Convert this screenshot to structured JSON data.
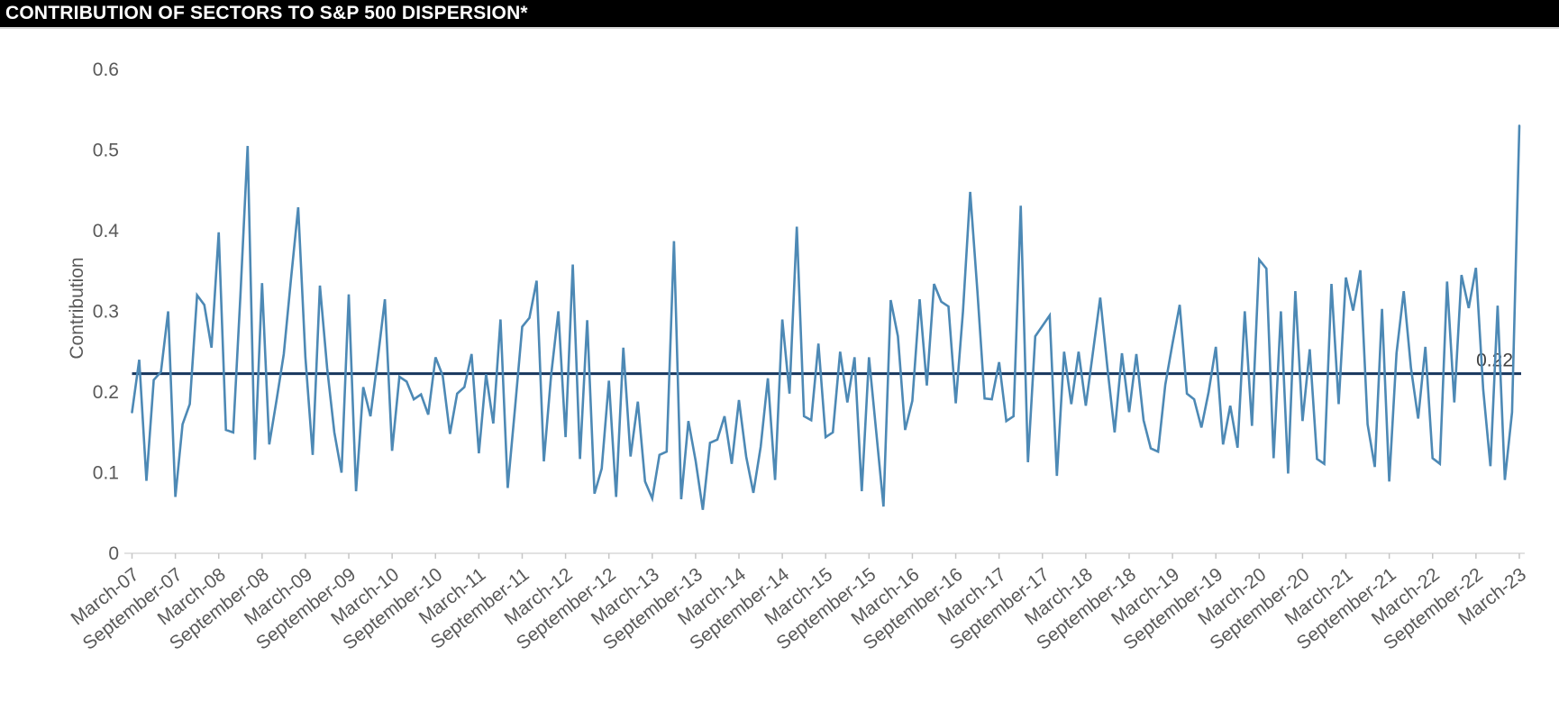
{
  "title": "CONTRIBUTION OF SECTORS TO S&P 500 DISPERSION*",
  "colors": {
    "title_bar_bg": "#000000",
    "title_text": "#ffffff",
    "series_line": "#4d89b5",
    "mean_line": "#17365d",
    "axis_line": "#d9d9d9",
    "tick_mark": "#c6c6c6",
    "axis_text": "#595959",
    "mean_label_text": "#404040"
  },
  "chart_data": {
    "type": "line",
    "title": "CONTRIBUTION OF SECTORS TO S&P 500 DISPERSION*",
    "xlabel": "",
    "ylabel": "Contribution",
    "ylim": [
      0,
      0.6
    ],
    "ytick_labels": [
      "0",
      "0.1",
      "0.2",
      "0.3",
      "0.4",
      "0.5",
      "0.6"
    ],
    "ytick_values": [
      0,
      0.1,
      0.2,
      0.3,
      0.4,
      0.5,
      0.6
    ],
    "grid": false,
    "legend_position": "none",
    "x_frequency": "monthly",
    "x_start": "March-07",
    "x_end": "March-23",
    "x_tick_labels": [
      "March-07",
      "September-07",
      "March-08",
      "September-08",
      "March-09",
      "September-09",
      "March-10",
      "September-10",
      "March-11",
      "September-11",
      "March-12",
      "September-12",
      "March-13",
      "September-13",
      "March-14",
      "September-14",
      "March-15",
      "September-15",
      "March-16",
      "September-16",
      "March-17",
      "September-17",
      "March-18",
      "September-18",
      "March-19",
      "September-19",
      "March-20",
      "September-20",
      "March-21",
      "September-21",
      "March-22",
      "September-22",
      "March-23"
    ],
    "mean_line": {
      "value": 0.22,
      "label": "0.22"
    },
    "series": [
      {
        "name": "Contribution of sectors to S&P 500 dispersion",
        "values": [
          0.175,
          0.24,
          0.09,
          0.215,
          0.225,
          0.3,
          0.07,
          0.16,
          0.185,
          0.32,
          0.308,
          0.255,
          0.398,
          0.153,
          0.15,
          0.32,
          0.505,
          0.116,
          0.335,
          0.135,
          0.19,
          0.247,
          0.34,
          0.429,
          0.243,
          0.122,
          0.332,
          0.23,
          0.15,
          0.1,
          0.321,
          0.077,
          0.206,
          0.17,
          0.24,
          0.315,
          0.127,
          0.219,
          0.213,
          0.191,
          0.197,
          0.172,
          0.243,
          0.22,
          0.148,
          0.198,
          0.206,
          0.247,
          0.124,
          0.222,
          0.161,
          0.29,
          0.081,
          0.18,
          0.281,
          0.292,
          0.338,
          0.114,
          0.22,
          0.3,
          0.144,
          0.358,
          0.117,
          0.289,
          0.074,
          0.105,
          0.214,
          0.07,
          0.255,
          0.12,
          0.188,
          0.089,
          0.068,
          0.122,
          0.126,
          0.387,
          0.067,
          0.164,
          0.115,
          0.054,
          0.137,
          0.141,
          0.17,
          0.111,
          0.19,
          0.12,
          0.075,
          0.132,
          0.217,
          0.091,
          0.29,
          0.198,
          0.405,
          0.17,
          0.165,
          0.26,
          0.144,
          0.15,
          0.25,
          0.187,
          0.243,
          0.077,
          0.243,
          0.15,
          0.058,
          0.314,
          0.269,
          0.153,
          0.189,
          0.315,
          0.208,
          0.334,
          0.312,
          0.306,
          0.186,
          0.3,
          0.448,
          0.325,
          0.192,
          0.191,
          0.237,
          0.164,
          0.17,
          0.431,
          0.113,
          0.269,
          0.282,
          0.295,
          0.096,
          0.25,
          0.185,
          0.25,
          0.183,
          0.25,
          0.317,
          0.23,
          0.15,
          0.248,
          0.175,
          0.247,
          0.165,
          0.13,
          0.126,
          0.209,
          0.26,
          0.308,
          0.198,
          0.191,
          0.156,
          0.2,
          0.256,
          0.135,
          0.183,
          0.131,
          0.3,
          0.158,
          0.364,
          0.353,
          0.118,
          0.3,
          0.099,
          0.325,
          0.164,
          0.253,
          0.117,
          0.111,
          0.334,
          0.185,
          0.342,
          0.301,
          0.351,
          0.16,
          0.107,
          0.303,
          0.089,
          0.248,
          0.325,
          0.23,
          0.167,
          0.256,
          0.118,
          0.111,
          0.337,
          0.187,
          0.345,
          0.304,
          0.354,
          0.203,
          0.108,
          0.307,
          0.091,
          0.175,
          0.53
        ]
      }
    ]
  }
}
